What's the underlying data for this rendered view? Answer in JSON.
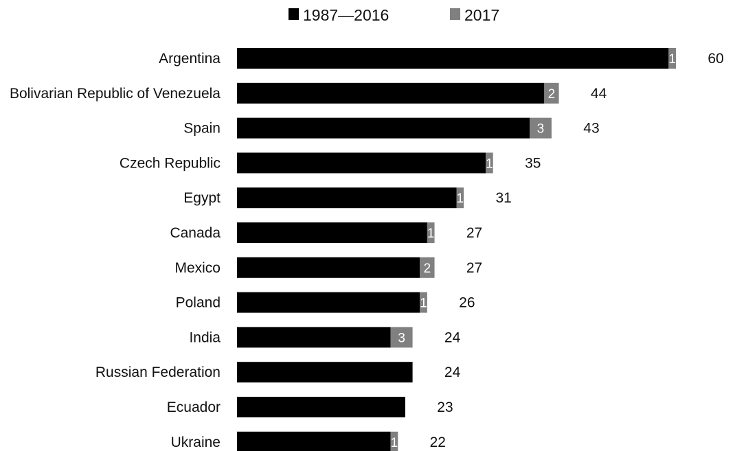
{
  "chart_data": {
    "type": "bar",
    "orientation": "horizontal",
    "stacked": true,
    "title": "",
    "xlabel": "",
    "ylabel": "",
    "xlim": [
      0,
      60
    ],
    "grid": false,
    "legend_position": "top-center",
    "categories": [
      "Argentina",
      "Bolivarian Republic of Venezuela",
      "Spain",
      "Czech Republic",
      "Egypt",
      "Canada",
      "Mexico",
      "Poland",
      "India",
      "Russian Federation",
      "Ecuador",
      "Ukraine"
    ],
    "series": [
      {
        "name": "1987—2016",
        "color": "#000000",
        "values": [
          59,
          42,
          40,
          34,
          30,
          26,
          25,
          25,
          21,
          24,
          23,
          21
        ]
      },
      {
        "name": "2017",
        "color": "#808080",
        "values": [
          1,
          2,
          3,
          1,
          1,
          1,
          2,
          1,
          3,
          0,
          0,
          1
        ]
      }
    ],
    "totals": [
      60,
      44,
      43,
      35,
      31,
      27,
      27,
      26,
      24,
      24,
      23,
      22
    ],
    "segment_labels": [
      "1",
      "2",
      "3",
      "1",
      "1",
      "1",
      "2",
      "1",
      "3",
      "",
      "",
      "1"
    ]
  }
}
